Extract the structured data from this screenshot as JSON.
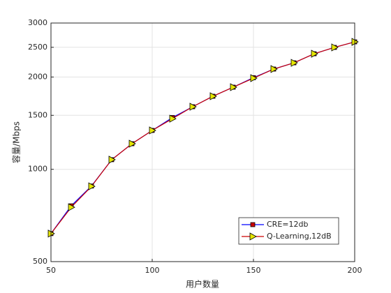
{
  "chart_data": {
    "type": "line",
    "x_label": "用户数量",
    "y_label": "容量/Mbps",
    "x": [
      50,
      60,
      70,
      80,
      90,
      100,
      110,
      120,
      130,
      140,
      150,
      160,
      170,
      180,
      190,
      200
    ],
    "series": [
      {
        "name": "CRE=12db",
        "color": "#0000ff",
        "marker": "square",
        "marker_color": "#cc0000",
        "values": [
          617,
          760,
          882,
          1075,
          1212,
          1339,
          1475,
          1600,
          1731,
          1853,
          1990,
          2123,
          2225,
          2382,
          2498,
          2604
        ]
      },
      {
        "name": "Q-Learning,12dB",
        "color": "#cc0000",
        "marker": "triangle-right",
        "marker_color": "#e6e600",
        "values": [
          617,
          752,
          880,
          1075,
          1212,
          1339,
          1463,
          1600,
          1731,
          1853,
          1983,
          2123,
          2225,
          2382,
          2498,
          2604
        ]
      }
    ],
    "xlim": [
      50,
      200
    ],
    "xticks": [
      50,
      100,
      150,
      200
    ],
    "ylim": [
      500,
      3000
    ],
    "yticks": [
      500,
      1000,
      1500,
      2000,
      2500,
      3000
    ],
    "ylog": true,
    "grid": true,
    "legend": "lower right"
  }
}
